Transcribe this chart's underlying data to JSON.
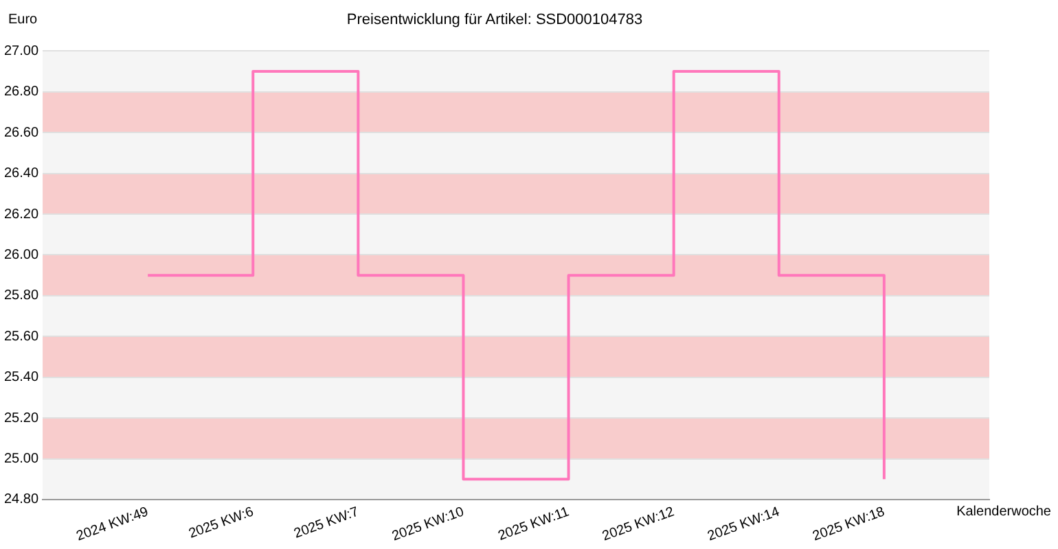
{
  "chart_data": {
    "type": "step",
    "title": "Preisentwicklung für Artikel: SSD000104783",
    "xlabel": "Kalenderwoche",
    "ylabel": "Euro",
    "categories": [
      "2024 KW:49",
      "2025 KW:6",
      "2025 KW:7",
      "2025 KW:10",
      "2025 KW:11",
      "2025 KW:12",
      "2025 KW:14",
      "2025 KW:18"
    ],
    "series": [
      {
        "color": "#ff77bb",
        "values": [
          25.9,
          26.9,
          25.9,
          24.9,
          25.9,
          26.9,
          25.9,
          24.9
        ]
      }
    ],
    "ylim": [
      24.8,
      27.0
    ],
    "yticks": [
      {
        "value": 24.8,
        "label": "24.80"
      },
      {
        "value": 25.0,
        "label": "25.00"
      },
      {
        "value": 25.2,
        "label": "25.20"
      },
      {
        "value": 25.4,
        "label": "25.40"
      },
      {
        "value": 25.6,
        "label": "25.60"
      },
      {
        "value": 25.8,
        "label": "25.80"
      },
      {
        "value": 26.0,
        "label": "26.00"
      },
      {
        "value": 26.2,
        "label": "26.20"
      },
      {
        "value": 26.4,
        "label": "26.40"
      },
      {
        "value": 26.6,
        "label": "26.60"
      },
      {
        "value": 26.8,
        "label": "26.80"
      },
      {
        "value": 27.0,
        "label": "27.00"
      }
    ],
    "bands": [
      {
        "axis": "y",
        "from": 25.0,
        "to": 25.2,
        "color": "#f8cccc"
      },
      {
        "axis": "y",
        "from": 25.4,
        "to": 25.6,
        "color": "#f8cccc"
      },
      {
        "axis": "y",
        "from": 25.8,
        "to": 26.0,
        "color": "#f8cccc"
      },
      {
        "axis": "y",
        "from": 26.2,
        "to": 26.4,
        "color": "#f8cccc"
      },
      {
        "axis": "y",
        "from": 26.6,
        "to": 26.8,
        "color": "#f8cccc"
      }
    ],
    "grid": "y",
    "legend": false
  }
}
